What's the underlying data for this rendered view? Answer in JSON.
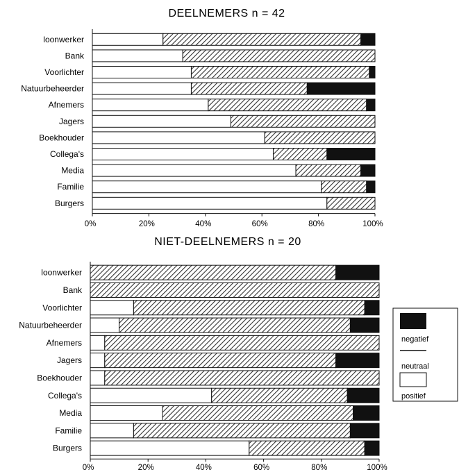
{
  "chart_data": [
    {
      "type": "bar",
      "orientation": "horizontal",
      "stacked": "percent",
      "title": "DEELNEMERS n = 42",
      "categories": [
        "loonwerker",
        "Bank",
        "Voorlichter",
        "Natuurbeheerder",
        "Afnemers",
        "Jagers",
        "Boekhouder",
        "Collega's",
        "Media",
        "Familie",
        "Burgers"
      ],
      "series": [
        {
          "name": "positief",
          "values": [
            25,
            32,
            35,
            35,
            41,
            49,
            61,
            64,
            72,
            81,
            83
          ]
        },
        {
          "name": "neutraal",
          "values": [
            70,
            68,
            63,
            41,
            56,
            51,
            39,
            19,
            23,
            16,
            17
          ]
        },
        {
          "name": "negatief",
          "values": [
            5,
            0,
            2,
            24,
            3,
            0,
            0,
            17,
            5,
            3,
            0
          ]
        }
      ],
      "x_ticks": [
        "0%",
        "20%",
        "40%",
        "60%",
        "80%",
        "100%"
      ],
      "xlim": [
        0,
        100
      ],
      "grid": false
    },
    {
      "type": "bar",
      "orientation": "horizontal",
      "stacked": "percent",
      "title": "NIET-DEELNEMERS n = 20",
      "categories": [
        "loonwerker",
        "Bank",
        "Voorlichter",
        "Natuurbeheerder",
        "Afnemers",
        "Jagers",
        "Boekhouder",
        "Collega's",
        "Media",
        "Familie",
        "Burgers"
      ],
      "series": [
        {
          "name": "positief",
          "values": [
            0,
            0,
            15,
            10,
            5,
            5,
            5,
            42,
            25,
            15,
            55
          ]
        },
        {
          "name": "neutraal",
          "values": [
            85,
            100,
            80,
            80,
            95,
            80,
            95,
            47,
            66,
            75,
            40
          ]
        },
        {
          "name": "negatief",
          "values": [
            15,
            0,
            5,
            10,
            0,
            15,
            0,
            11,
            9,
            10,
            5
          ]
        }
      ],
      "x_ticks": [
        "0%",
        "20%",
        "40%",
        "60%",
        "80%",
        "100%"
      ],
      "xlim": [
        0,
        100
      ],
      "grid": false
    }
  ],
  "legend": {
    "placement": "right",
    "items": [
      {
        "label": "negatief",
        "fill": "black"
      },
      {
        "label": "neutraal",
        "fill": "hatched"
      },
      {
        "label": "positief",
        "fill": "white"
      }
    ]
  },
  "colors": {
    "ink": "#111111",
    "background": "#ffffff",
    "hatch": "#333333"
  }
}
